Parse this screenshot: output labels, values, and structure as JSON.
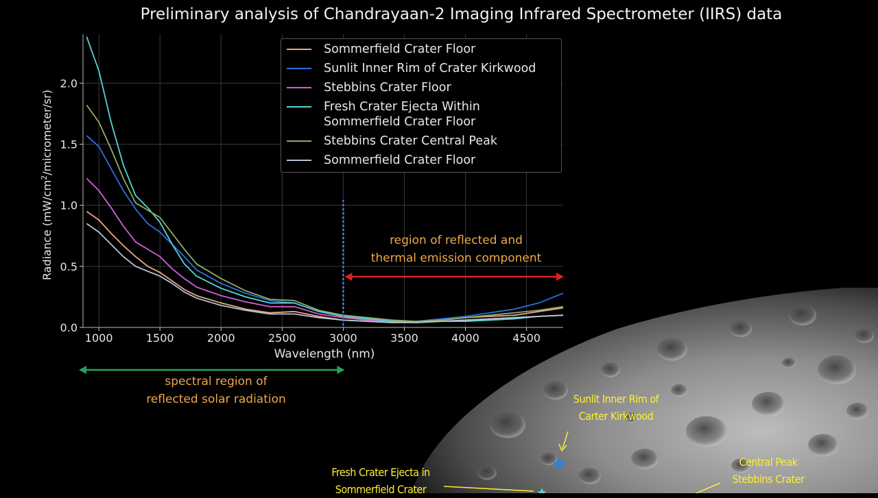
{
  "title": "Preliminary analysis of Chandrayaan-2 Imaging Infrared Spectrometer (IIRS) data",
  "chart_data": {
    "type": "line",
    "title": "Preliminary analysis of Chandrayaan-2 Imaging Infrared Spectrometer (IIRS) data",
    "xlabel": "Wavelength (nm)",
    "ylabel": "Radiance (mW/cm²/micrometer/sr)",
    "xlim": [
      870,
      4800
    ],
    "ylim": [
      0,
      2.4
    ],
    "xticks": [
      1000,
      1500,
      2000,
      2500,
      3000,
      3500,
      4000,
      4500
    ],
    "xtick_labels": [
      "1000",
      "1500",
      "2000",
      "2500",
      "3000",
      "3500",
      "4000",
      "4500"
    ],
    "yticks": [
      0.0,
      0.5,
      1.0,
      1.5,
      2.0
    ],
    "ytick_labels": [
      "0.0",
      "0.5",
      "1.0",
      "1.5",
      "2.0"
    ],
    "grid": true,
    "legend_position": "top-right",
    "series": [
      {
        "name": "Sommerfield Crater Floor",
        "color": "#e8a98a",
        "x": [
          900,
          1000,
          1100,
          1200,
          1300,
          1400,
          1500,
          1600,
          1700,
          1800,
          2000,
          2200,
          2400,
          2600,
          2800,
          3000,
          3200,
          3400,
          3600,
          3800,
          4000,
          4200,
          4400,
          4600,
          4800
        ],
        "y": [
          0.95,
          0.88,
          0.77,
          0.67,
          0.58,
          0.5,
          0.45,
          0.38,
          0.31,
          0.26,
          0.2,
          0.15,
          0.12,
          0.13,
          0.09,
          0.06,
          0.05,
          0.04,
          0.05,
          0.06,
          0.08,
          0.09,
          0.1,
          0.13,
          0.16
        ]
      },
      {
        "name": "Sunlit Inner Rim of Crater Kirkwood",
        "color": "#2d6fe0",
        "x": [
          900,
          1000,
          1100,
          1200,
          1300,
          1400,
          1500,
          1600,
          1700,
          1800,
          2000,
          2200,
          2400,
          2600,
          2800,
          3000,
          3200,
          3400,
          3600,
          3800,
          4000,
          4200,
          4400,
          4600,
          4800
        ],
        "y": [
          1.57,
          1.48,
          1.3,
          1.12,
          0.97,
          0.85,
          0.78,
          0.68,
          0.58,
          0.47,
          0.36,
          0.28,
          0.22,
          0.2,
          0.13,
          0.09,
          0.07,
          0.05,
          0.05,
          0.07,
          0.09,
          0.12,
          0.15,
          0.2,
          0.28
        ]
      },
      {
        "name": "Stebbins Crater Floor",
        "color": "#d55fd6",
        "x": [
          900,
          1000,
          1100,
          1200,
          1300,
          1400,
          1500,
          1600,
          1700,
          1800,
          2000,
          2200,
          2400,
          2600,
          2800,
          3000,
          3200,
          3400,
          3600,
          3800,
          4000,
          4200,
          4400,
          4600,
          4800
        ],
        "y": [
          1.22,
          1.12,
          0.98,
          0.83,
          0.7,
          0.64,
          0.58,
          0.48,
          0.4,
          0.33,
          0.26,
          0.21,
          0.17,
          0.17,
          0.11,
          0.08,
          0.06,
          0.05,
          0.04,
          0.05,
          0.06,
          0.07,
          0.08,
          0.09,
          0.1
        ]
      },
      {
        "name": "Fresh Crater Ejecta Within Sommerfield Crater Floor",
        "color": "#57d6d2",
        "x": [
          900,
          1000,
          1100,
          1200,
          1300,
          1400,
          1500,
          1600,
          1700,
          1800,
          2000,
          2200,
          2400,
          2600,
          2800,
          3000,
          3200,
          3400,
          3600,
          3800,
          4000,
          4200,
          4400,
          4600,
          4800
        ],
        "y": [
          2.38,
          2.1,
          1.68,
          1.33,
          1.08,
          0.98,
          0.86,
          0.68,
          0.52,
          0.42,
          0.32,
          0.25,
          0.2,
          0.2,
          0.13,
          0.09,
          0.07,
          0.05,
          0.04,
          0.05,
          0.05,
          0.06,
          0.07,
          0.09,
          0.1
        ]
      },
      {
        "name": "Stebbins Crater Central Peak",
        "color": "#8fae66",
        "x": [
          900,
          1000,
          1100,
          1200,
          1300,
          1400,
          1500,
          1600,
          1700,
          1800,
          2000,
          2200,
          2400,
          2600,
          2800,
          3000,
          3200,
          3400,
          3600,
          3800,
          4000,
          4200,
          4400,
          4600,
          4800
        ],
        "y": [
          1.82,
          1.68,
          1.46,
          1.22,
          1.02,
          0.96,
          0.9,
          0.77,
          0.64,
          0.52,
          0.4,
          0.3,
          0.23,
          0.22,
          0.14,
          0.1,
          0.08,
          0.06,
          0.05,
          0.06,
          0.08,
          0.1,
          0.12,
          0.14,
          0.17
        ]
      },
      {
        "name": "Sommerfield Crater Floor",
        "color": "#b7c4d4",
        "x": [
          900,
          1000,
          1100,
          1200,
          1300,
          1400,
          1500,
          1600,
          1700,
          1800,
          2000,
          2200,
          2400,
          2600,
          2800,
          3000,
          3200,
          3400,
          3600,
          3800,
          4000,
          4200,
          4400,
          4600,
          4800
        ],
        "y": [
          0.85,
          0.78,
          0.68,
          0.58,
          0.5,
          0.46,
          0.42,
          0.36,
          0.29,
          0.24,
          0.18,
          0.14,
          0.11,
          0.11,
          0.08,
          0.06,
          0.05,
          0.04,
          0.04,
          0.05,
          0.06,
          0.07,
          0.08,
          0.09,
          0.1
        ]
      }
    ],
    "annotations": {
      "vline_x": 3000,
      "vline_color": "#4c7fd4",
      "thermal_region_label": [
        "region of reflected and",
        "thermal emission component"
      ],
      "thermal_region_range": [
        3000,
        4800
      ],
      "thermal_arrow_color": "#e0201b",
      "solar_region_label": [
        "spectral region of",
        "reflected solar radiation"
      ],
      "solar_region_range": [
        870,
        3000
      ],
      "solar_arrow_color": "#22a35a",
      "label_color": "#f0a84a"
    }
  },
  "moon_labels": {
    "kirkwood": [
      "Sunlit Inner Rim of",
      "Carter Kirkwood"
    ],
    "stebbins": [
      "Central Peak",
      "Stebbins Crater"
    ],
    "ejecta": [
      "Fresh Crater Ejecta in",
      "Sommerfield Crater"
    ],
    "label_color": "#ffee33",
    "marker_color": "#2f7fe8"
  }
}
